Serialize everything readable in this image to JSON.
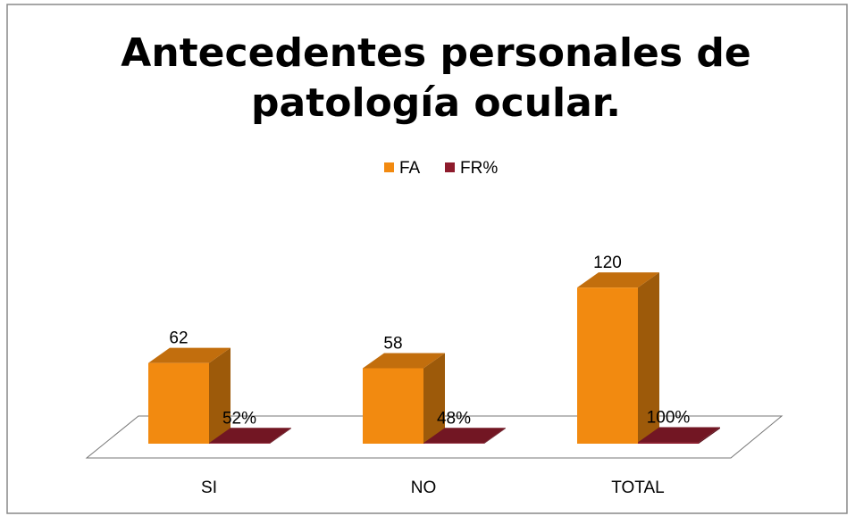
{
  "chart_data": {
    "type": "bar3d",
    "title": [
      "Antecedentes personales de",
      "patología ocular."
    ],
    "categories": [
      "SI",
      "NO",
      "TOTAL"
    ],
    "series": [
      {
        "name": "FA",
        "color": "#f28a10",
        "values": [
          62,
          58,
          120
        ]
      },
      {
        "name": "FR%",
        "color": "#8e1b2c",
        "values": [
          0.52,
          0.48,
          1
        ],
        "value_labels": [
          "52%",
          "48%",
          "100%"
        ]
      }
    ],
    "ylim": [
      0,
      140
    ],
    "legend": "top"
  }
}
